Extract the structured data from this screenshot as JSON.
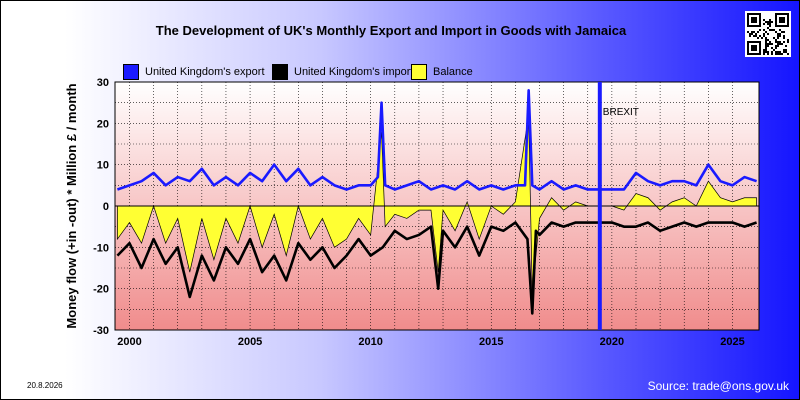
{
  "chart_data": {
    "type": "line",
    "title": "The Development of UK's Monthly Export and Import in Goods with Jamaica",
    "xlabel": "",
    "ylabel": "Money flow (+in -out) * Million £ / month",
    "xlim": [
      1999.4,
      2026.1
    ],
    "ylim": [
      -30,
      30
    ],
    "x_ticks": [
      2000,
      2005,
      2010,
      2015,
      2020,
      2025
    ],
    "y_ticks": [
      -30,
      -20,
      -10,
      0,
      10,
      20,
      30
    ],
    "grid": true,
    "legend_position": "top",
    "annotations": [
      {
        "text": "BREXIT",
        "x": 2019.5
      }
    ],
    "series": [
      {
        "name": "United Kingdom's export",
        "color": "#1a1aff",
        "x": [
          1999.5,
          2000.0,
          2000.5,
          2001.0,
          2001.5,
          2002.0,
          2002.5,
          2003.0,
          2003.5,
          2004.0,
          2004.5,
          2005.0,
          2005.5,
          2006.0,
          2006.5,
          2007.0,
          2007.5,
          2008.0,
          2008.5,
          2009.0,
          2009.5,
          2010.0,
          2010.3,
          2010.45,
          2010.6,
          2011.0,
          2011.5,
          2012.0,
          2012.5,
          2013.0,
          2013.5,
          2014.0,
          2014.5,
          2015.0,
          2015.5,
          2016.0,
          2016.4,
          2016.55,
          2016.7,
          2017.0,
          2017.5,
          2018.0,
          2018.5,
          2019.0,
          2019.5,
          2020.0,
          2020.5,
          2021.0,
          2021.5,
          2022.0,
          2022.5,
          2023.0,
          2023.5,
          2024.0,
          2024.5,
          2025.0,
          2025.5,
          2026.0
        ],
        "values": [
          4,
          5,
          6,
          8,
          5,
          7,
          6,
          9,
          5,
          7,
          5,
          8,
          6,
          10,
          6,
          9,
          5,
          7,
          5,
          4,
          5,
          5,
          7,
          25,
          5,
          4,
          5,
          6,
          4,
          5,
          4,
          6,
          4,
          5,
          4,
          5,
          5,
          28,
          5,
          4,
          6,
          4,
          5,
          4,
          4,
          4,
          4,
          8,
          6,
          5,
          6,
          6,
          5,
          10,
          6,
          5,
          7,
          6
        ]
      },
      {
        "name": "United Kingdom's import",
        "color": "#000000",
        "x": [
          1999.5,
          2000.0,
          2000.5,
          2001.0,
          2001.5,
          2002.0,
          2002.5,
          2003.0,
          2003.5,
          2004.0,
          2004.5,
          2005.0,
          2005.5,
          2006.0,
          2006.5,
          2007.0,
          2007.5,
          2008.0,
          2008.5,
          2009.0,
          2009.5,
          2010.0,
          2010.5,
          2011.0,
          2011.5,
          2012.0,
          2012.5,
          2012.8,
          2013.0,
          2013.5,
          2014.0,
          2014.5,
          2015.0,
          2015.5,
          2016.0,
          2016.5,
          2016.7,
          2016.85,
          2017.0,
          2017.5,
          2018.0,
          2018.5,
          2019.0,
          2019.5,
          2020.0,
          2020.5,
          2021.0,
          2021.5,
          2022.0,
          2022.5,
          2023.0,
          2023.5,
          2024.0,
          2024.5,
          2025.0,
          2025.5,
          2026.0
        ],
        "values": [
          -12,
          -9,
          -15,
          -8,
          -14,
          -10,
          -22,
          -12,
          -18,
          -10,
          -14,
          -8,
          -16,
          -12,
          -18,
          -9,
          -13,
          -10,
          -15,
          -12,
          -8,
          -12,
          -10,
          -6,
          -8,
          -7,
          -5,
          -20,
          -6,
          -10,
          -5,
          -12,
          -5,
          -6,
          -4,
          -8,
          -26,
          -6,
          -7,
          -4,
          -5,
          -4,
          -4,
          -4,
          -4,
          -5,
          -5,
          -4,
          -6,
          -5,
          -4,
          -5,
          -4,
          -4,
          -4,
          -5,
          -4
        ]
      },
      {
        "name": "Balance",
        "color": "#ffff33",
        "x": [
          1999.5,
          2000.0,
          2000.5,
          2001.0,
          2001.5,
          2002.0,
          2002.5,
          2003.0,
          2003.5,
          2004.0,
          2004.5,
          2005.0,
          2005.5,
          2006.0,
          2006.5,
          2007.0,
          2007.5,
          2008.0,
          2008.5,
          2009.0,
          2009.5,
          2010.0,
          2010.45,
          2010.6,
          2011.0,
          2011.5,
          2012.0,
          2012.5,
          2012.8,
          2013.0,
          2013.5,
          2014.0,
          2014.5,
          2015.0,
          2015.5,
          2016.0,
          2016.55,
          2016.7,
          2017.0,
          2017.5,
          2018.0,
          2018.5,
          2019.0,
          2019.5,
          2020.0,
          2020.5,
          2021.0,
          2021.5,
          2022.0,
          2022.5,
          2023.0,
          2023.5,
          2024.0,
          2024.5,
          2025.0,
          2025.5,
          2026.0
        ],
        "values": [
          -8,
          -4,
          -9,
          0,
          -9,
          -3,
          -16,
          -3,
          -13,
          -3,
          -9,
          0,
          -10,
          -2,
          -12,
          0,
          -8,
          -3,
          -10,
          -8,
          -3,
          -7,
          18,
          -5,
          -2,
          -3,
          -1,
          -1,
          -16,
          -1,
          -6,
          1,
          -8,
          0,
          -2,
          1,
          22,
          -21,
          -3,
          2,
          -1,
          1,
          0,
          0,
          0,
          -1,
          3,
          2,
          -1,
          1,
          2,
          0,
          6,
          2,
          1,
          2,
          2
        ]
      }
    ]
  },
  "footer": {
    "date": "20.8.2026",
    "source": "Source: trade@ons.gov.uk"
  }
}
